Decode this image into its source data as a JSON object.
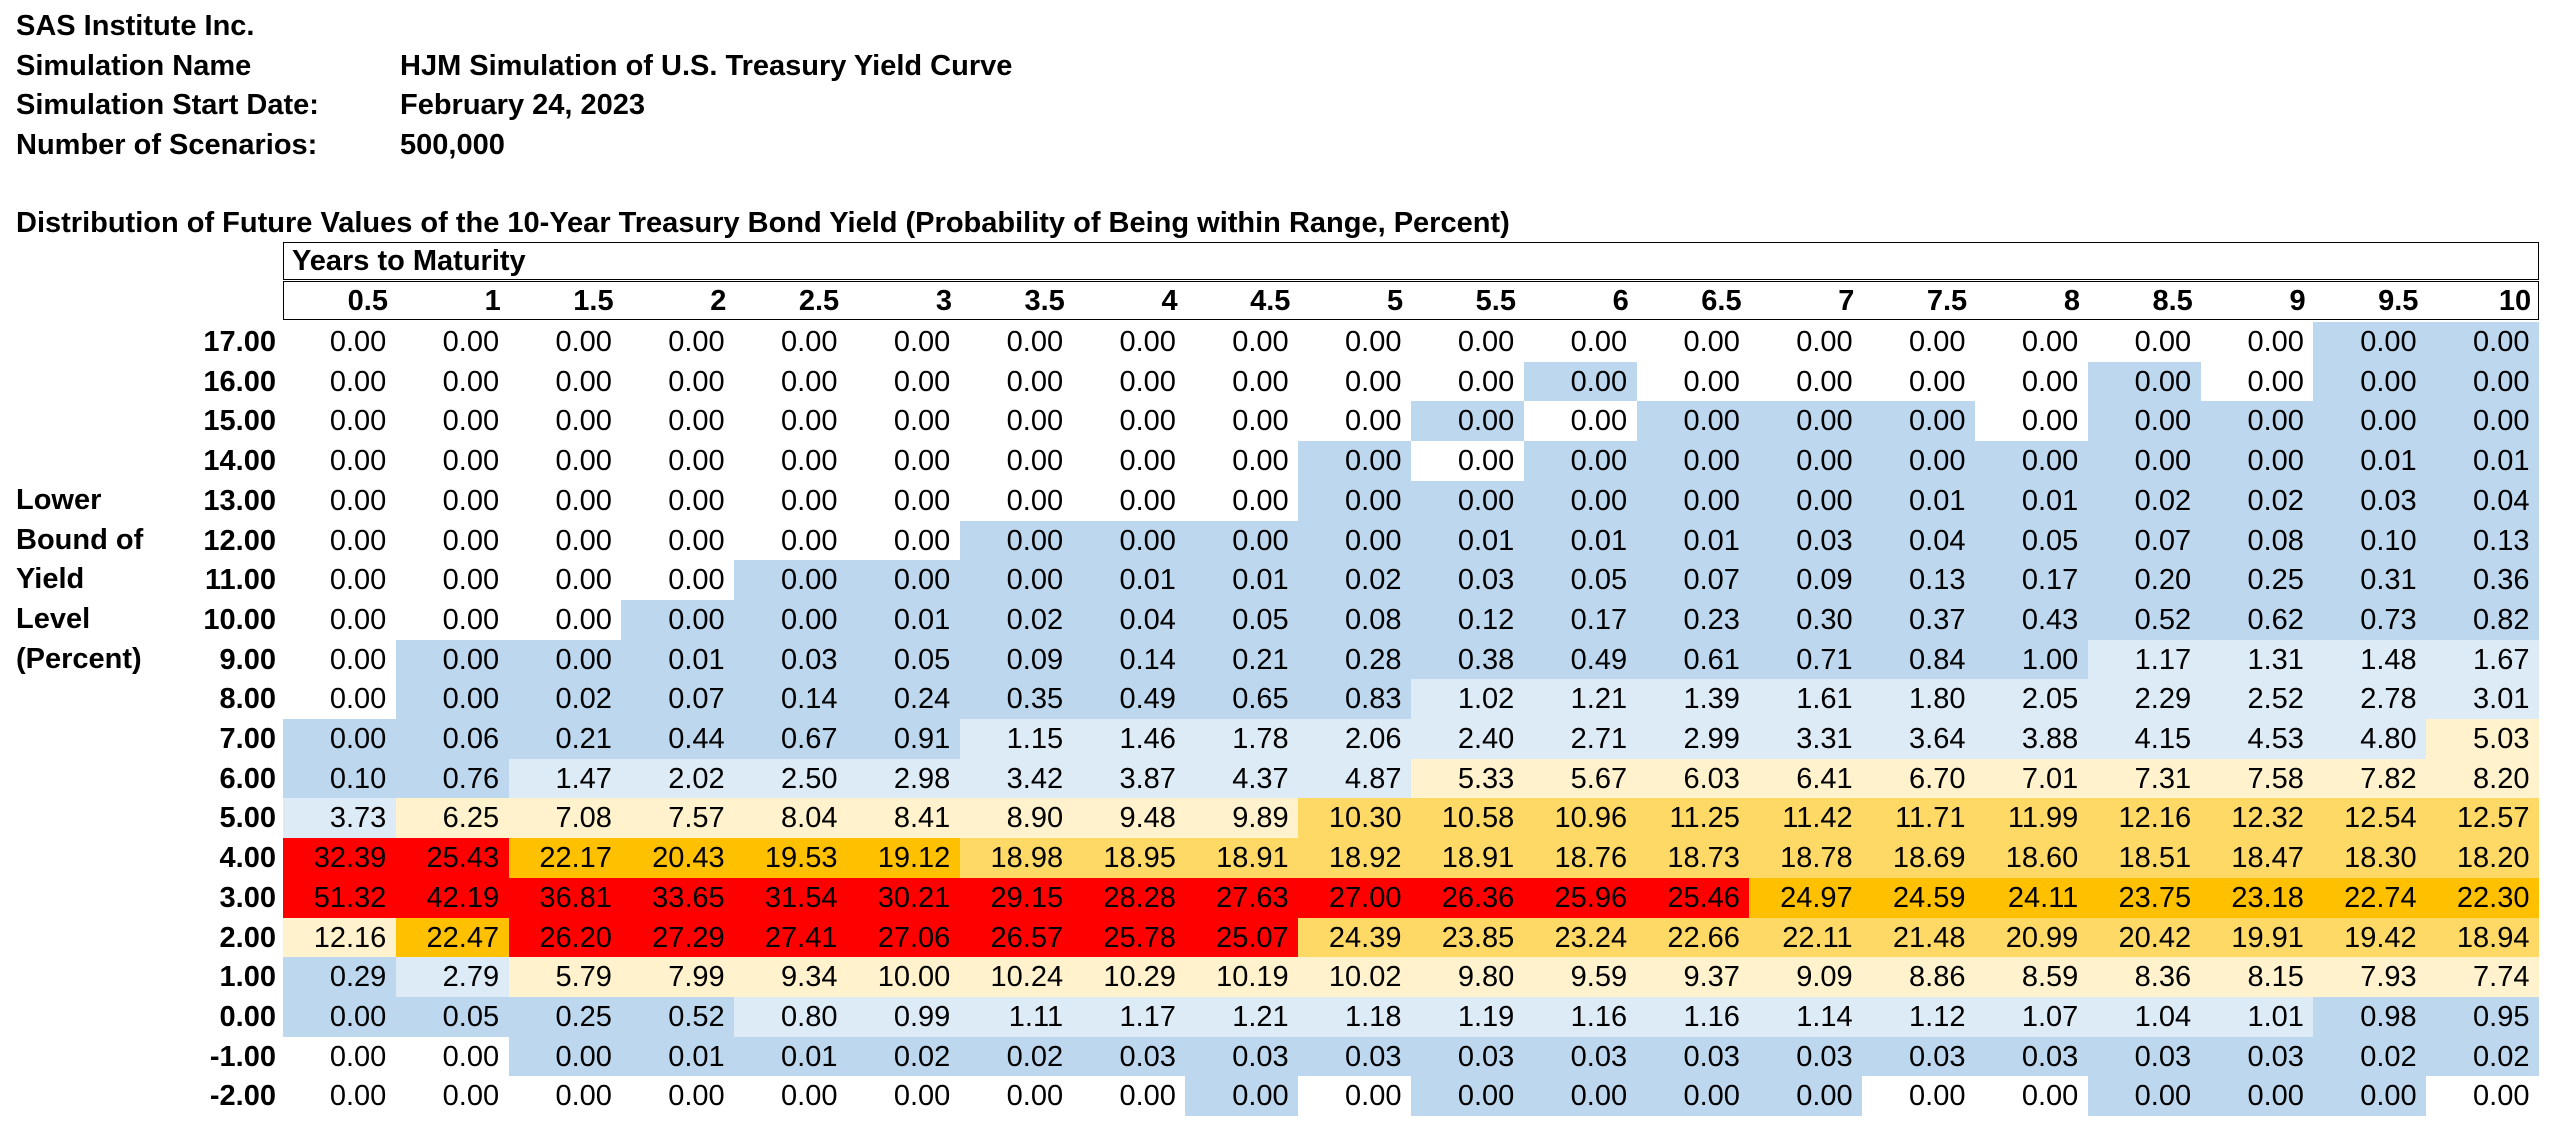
{
  "header": {
    "company": "SAS Institute Inc.",
    "rows": [
      {
        "label": "Simulation Name",
        "value": "HJM Simulation of U.S. Treasury Yield Curve"
      },
      {
        "label": "Simulation Start Date:",
        "value": "February 24, 2023"
      },
      {
        "label": "Number of Scenarios:",
        "value": "500,000"
      }
    ]
  },
  "table": {
    "title": "Distribution of Future Values of the 10-Year Treasury Bond Yield (Probability of Being within Range, Percent)",
    "column_group_label": "Years to Maturity",
    "side_label": [
      "Lower",
      "Bound of",
      "Yield",
      "Level",
      "(Percent)"
    ],
    "maturities": [
      "0.5",
      "1",
      "1.5",
      "2",
      "2.5",
      "3",
      "3.5",
      "4",
      "4.5",
      "5",
      "5.5",
      "6",
      "6.5",
      "7",
      "7.5",
      "8",
      "8.5",
      "9",
      "9.5",
      "10"
    ],
    "row_labels": [
      "17.00",
      "16.00",
      "15.00",
      "14.00",
      "13.00",
      "12.00",
      "11.00",
      "10.00",
      "9.00",
      "8.00",
      "7.00",
      "6.00",
      "5.00",
      "4.00",
      "3.00",
      "2.00",
      "1.00",
      "0.00",
      "-1.00",
      "-2.00"
    ],
    "rows": [
      [
        "0.00",
        "0.00",
        "0.00",
        "0.00",
        "0.00",
        "0.00",
        "0.00",
        "0.00",
        "0.00",
        "0.00",
        "0.00",
        "0.00",
        "0.00",
        "0.00",
        "0.00",
        "0.00",
        "0.00",
        "0.00",
        "0.00",
        "0.00"
      ],
      [
        "0.00",
        "0.00",
        "0.00",
        "0.00",
        "0.00",
        "0.00",
        "0.00",
        "0.00",
        "0.00",
        "0.00",
        "0.00",
        "0.00",
        "0.00",
        "0.00",
        "0.00",
        "0.00",
        "0.00",
        "0.00",
        "0.00",
        "0.00"
      ],
      [
        "0.00",
        "0.00",
        "0.00",
        "0.00",
        "0.00",
        "0.00",
        "0.00",
        "0.00",
        "0.00",
        "0.00",
        "0.00",
        "0.00",
        "0.00",
        "0.00",
        "0.00",
        "0.00",
        "0.00",
        "0.00",
        "0.00",
        "0.00"
      ],
      [
        "0.00",
        "0.00",
        "0.00",
        "0.00",
        "0.00",
        "0.00",
        "0.00",
        "0.00",
        "0.00",
        "0.00",
        "0.00",
        "0.00",
        "0.00",
        "0.00",
        "0.00",
        "0.00",
        "0.00",
        "0.00",
        "0.01",
        "0.01"
      ],
      [
        "0.00",
        "0.00",
        "0.00",
        "0.00",
        "0.00",
        "0.00",
        "0.00",
        "0.00",
        "0.00",
        "0.00",
        "0.00",
        "0.00",
        "0.00",
        "0.00",
        "0.01",
        "0.01",
        "0.02",
        "0.02",
        "0.03",
        "0.04"
      ],
      [
        "0.00",
        "0.00",
        "0.00",
        "0.00",
        "0.00",
        "0.00",
        "0.00",
        "0.00",
        "0.00",
        "0.00",
        "0.01",
        "0.01",
        "0.01",
        "0.03",
        "0.04",
        "0.05",
        "0.07",
        "0.08",
        "0.10",
        "0.13"
      ],
      [
        "0.00",
        "0.00",
        "0.00",
        "0.00",
        "0.00",
        "0.00",
        "0.00",
        "0.01",
        "0.01",
        "0.02",
        "0.03",
        "0.05",
        "0.07",
        "0.09",
        "0.13",
        "0.17",
        "0.20",
        "0.25",
        "0.31",
        "0.36"
      ],
      [
        "0.00",
        "0.00",
        "0.00",
        "0.00",
        "0.00",
        "0.01",
        "0.02",
        "0.04",
        "0.05",
        "0.08",
        "0.12",
        "0.17",
        "0.23",
        "0.30",
        "0.37",
        "0.43",
        "0.52",
        "0.62",
        "0.73",
        "0.82"
      ],
      [
        "0.00",
        "0.00",
        "0.00",
        "0.01",
        "0.03",
        "0.05",
        "0.09",
        "0.14",
        "0.21",
        "0.28",
        "0.38",
        "0.49",
        "0.61",
        "0.71",
        "0.84",
        "1.00",
        "1.17",
        "1.31",
        "1.48",
        "1.67"
      ],
      [
        "0.00",
        "0.00",
        "0.02",
        "0.07",
        "0.14",
        "0.24",
        "0.35",
        "0.49",
        "0.65",
        "0.83",
        "1.02",
        "1.21",
        "1.39",
        "1.61",
        "1.80",
        "2.05",
        "2.29",
        "2.52",
        "2.78",
        "3.01"
      ],
      [
        "0.00",
        "0.06",
        "0.21",
        "0.44",
        "0.67",
        "0.91",
        "1.15",
        "1.46",
        "1.78",
        "2.06",
        "2.40",
        "2.71",
        "2.99",
        "3.31",
        "3.64",
        "3.88",
        "4.15",
        "4.53",
        "4.80",
        "5.03"
      ],
      [
        "0.10",
        "0.76",
        "1.47",
        "2.02",
        "2.50",
        "2.98",
        "3.42",
        "3.87",
        "4.37",
        "4.87",
        "5.33",
        "5.67",
        "6.03",
        "6.41",
        "6.70",
        "7.01",
        "7.31",
        "7.58",
        "7.82",
        "8.20"
      ],
      [
        "3.73",
        "6.25",
        "7.08",
        "7.57",
        "8.04",
        "8.41",
        "8.90",
        "9.48",
        "9.89",
        "10.30",
        "10.58",
        "10.96",
        "11.25",
        "11.42",
        "11.71",
        "11.99",
        "12.16",
        "12.32",
        "12.54",
        "12.57"
      ],
      [
        "32.39",
        "25.43",
        "22.17",
        "20.43",
        "19.53",
        "19.12",
        "18.98",
        "18.95",
        "18.91",
        "18.92",
        "18.91",
        "18.76",
        "18.73",
        "18.78",
        "18.69",
        "18.60",
        "18.51",
        "18.47",
        "18.30",
        "18.20"
      ],
      [
        "51.32",
        "42.19",
        "36.81",
        "33.65",
        "31.54",
        "30.21",
        "29.15",
        "28.28",
        "27.63",
        "27.00",
        "26.36",
        "25.96",
        "25.46",
        "24.97",
        "24.59",
        "24.11",
        "23.75",
        "23.18",
        "22.74",
        "22.30"
      ],
      [
        "12.16",
        "22.47",
        "26.20",
        "27.29",
        "27.41",
        "27.06",
        "26.57",
        "25.78",
        "25.07",
        "24.39",
        "23.85",
        "23.24",
        "22.66",
        "22.11",
        "21.48",
        "20.99",
        "20.42",
        "19.91",
        "19.42",
        "18.94"
      ],
      [
        "0.29",
        "2.79",
        "5.79",
        "7.99",
        "9.34",
        "10.00",
        "10.24",
        "10.29",
        "10.19",
        "10.02",
        "9.80",
        "9.59",
        "9.37",
        "9.09",
        "8.86",
        "8.59",
        "8.36",
        "8.15",
        "7.93",
        "7.74"
      ],
      [
        "0.00",
        "0.05",
        "0.25",
        "0.52",
        "0.80",
        "0.99",
        "1.11",
        "1.17",
        "1.21",
        "1.18",
        "1.19",
        "1.16",
        "1.16",
        "1.14",
        "1.12",
        "1.07",
        "1.04",
        "1.01",
        "0.98",
        "0.95"
      ],
      [
        "0.00",
        "0.00",
        "0.00",
        "0.01",
        "0.01",
        "0.02",
        "0.02",
        "0.03",
        "0.03",
        "0.03",
        "0.03",
        "0.03",
        "0.03",
        "0.03",
        "0.03",
        "0.03",
        "0.03",
        "0.03",
        "0.02",
        "0.02"
      ],
      [
        "0.00",
        "0.00",
        "0.00",
        "0.00",
        "0.00",
        "0.00",
        "0.00",
        "0.00",
        "0.00",
        "0.00",
        "0.00",
        "0.00",
        "0.00",
        "0.00",
        "0.00",
        "0.00",
        "0.00",
        "0.00",
        "0.00",
        "0.00"
      ]
    ],
    "colors": {
      "white": "#FFFFFF",
      "blue": "#BDD7EE",
      "light_blue": "#DDEBF7",
      "light_yellow": "#FFF2CC",
      "gold": "#FFD966",
      "orange": "#FFC000",
      "red": "#FF0000"
    },
    "fill_map": [
      "WWWWWWWWWWWWWWWWWWBB",
      "WWWWWWWWWWWBWWWWBWBB",
      "WWWWWWWWWWBWBBBWBBBB",
      "WWWWWWWWWBWBBBBBBBBB",
      "WWWWWWWWWBBBBBBBBBBB",
      "WWWWWWBBBBBBBBBBBBBB",
      "WWWWBBBBBBBBBBBBBBBB",
      "WWWBBBBBBBBBBBBBBBBB",
      "WBBBBBBBBBBBBBBBLLLL",
      "WBBBBBBBBBLLLLLLLLLL",
      "BBBBBBLLLLLLLLLLLLLY",
      "BBLLLLLLLLYYYYYYYYYY",
      "LYYYYYYYYGGGGGGGGGGG",
      "RROOOOGGGGGGGGGGGGGG",
      "RRRRRRRRRRRRROOOOOOO",
      "YORRRRRRRGGGGGGGGGGG",
      "BLYYYYYYYYYYYYYYYYYY",
      "BBBBLLLLLLLLLLLLLLBB",
      "WWBBBBBBBBBBBBBBBBBB",
      "WWWWWWWWBWBBBBWWBBBW"
    ]
  }
}
